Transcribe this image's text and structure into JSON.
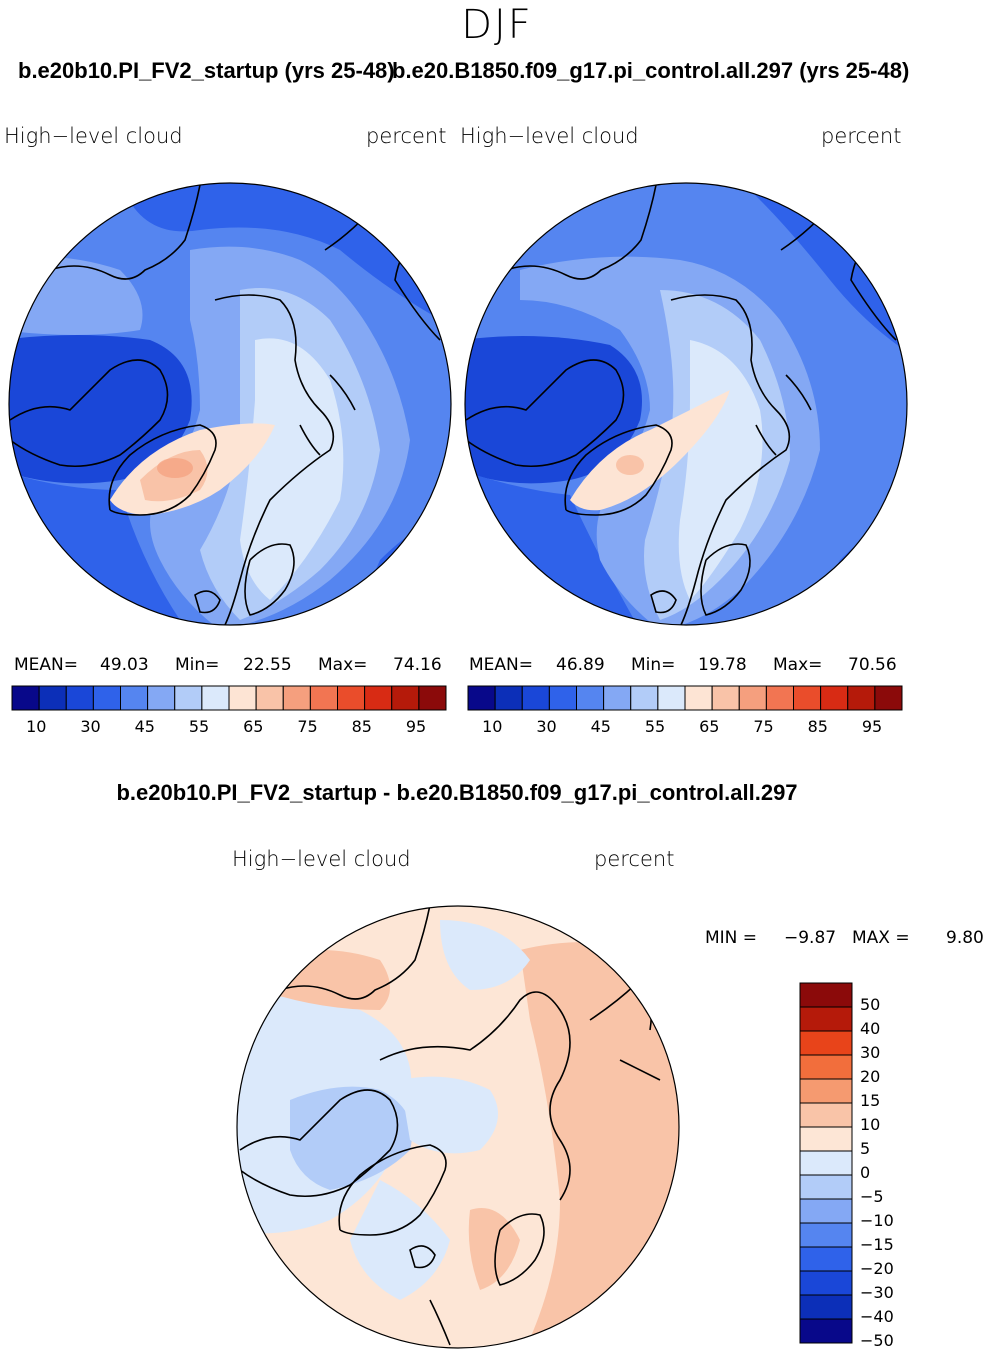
{
  "season": "DJF",
  "top_titles": {
    "left": "b.e20b10.PI_FV2_startup (yrs 25-48)",
    "right": "b.e20.B1850.f09_g17.pi_control.all.297 (yrs 25-48)"
  },
  "panels": [
    {
      "variable": "High−level  cloud",
      "units": "percent",
      "mean_label": "MEAN=",
      "mean": "49.03",
      "min_label": "Min=",
      "min": "22.55",
      "max_label": "Max=",
      "max": "74.16"
    },
    {
      "variable": "High−level  cloud",
      "units": "percent",
      "mean_label": "MEAN=",
      "mean": "46.89",
      "min_label": "Min=",
      "min": "19.78",
      "max_label": "Max=",
      "max": "70.56"
    }
  ],
  "abs_colorbar": {
    "colors": [
      "#08088a",
      "#0c2fb8",
      "#1a47d8",
      "#2f62ea",
      "#5585f0",
      "#84a8f4",
      "#b2ccf8",
      "#dbe9fb",
      "#fde4d4",
      "#f9c3a8",
      "#f59f7e",
      "#f27552",
      "#ea4d2b",
      "#d82b14",
      "#b51a0a",
      "#8b0a0a"
    ],
    "labels": [
      "10",
      "30",
      "45",
      "55",
      "65",
      "75",
      "85",
      "95"
    ]
  },
  "diff_title": "b.e20b10.PI_FV2_startup - b.e20.B1850.f09_g17.pi_control.all.297",
  "diff_panel": {
    "variable": "High−level  cloud",
    "units": "percent",
    "min_label": "MIN =",
    "min": "−9.87",
    "max_label": "MAX =",
    "max": "9.80"
  },
  "diff_colorbar": {
    "colors": [
      "#8b0a0a",
      "#b51a0a",
      "#e8441a",
      "#f26e3c",
      "#f59a70",
      "#f9c4a8",
      "#fde6d6",
      "#dbe9fb",
      "#b2ccf8",
      "#84a8f4",
      "#5585f0",
      "#2f62ea",
      "#1a47d8",
      "#0c2fb8",
      "#08088a"
    ],
    "labels": [
      "50",
      "40",
      "30",
      "20",
      "15",
      "10",
      "5",
      "0",
      "−5",
      "−10",
      "−15",
      "−20",
      "−30",
      "−40",
      "−50"
    ]
  },
  "chart_data": [
    {
      "type": "heatmap",
      "title": "b.e20b10.PI_FV2_startup (yrs 25-48)",
      "variable": "High-level cloud",
      "units": "percent",
      "projection": "north polar stereographic",
      "mean": 49.03,
      "min": 22.55,
      "max": 74.16,
      "contour_levels": [
        10,
        30,
        45,
        55,
        65,
        75,
        85,
        95
      ]
    },
    {
      "type": "heatmap",
      "title": "b.e20.B1850.f09_g17.pi_control.all.297 (yrs 25-48)",
      "variable": "High-level cloud",
      "units": "percent",
      "projection": "north polar stereographic",
      "mean": 46.89,
      "min": 19.78,
      "max": 70.56,
      "contour_levels": [
        10,
        30,
        45,
        55,
        65,
        75,
        85,
        95
      ]
    },
    {
      "type": "heatmap",
      "title": "b.e20b10.PI_FV2_startup - b.e20.B1850.f09_g17.pi_control.all.297",
      "variable": "High-level cloud",
      "units": "percent",
      "projection": "north polar stereographic",
      "min": -9.87,
      "max": 9.8,
      "contour_levels": [
        -50,
        -40,
        -30,
        -20,
        -15,
        -10,
        -5,
        0,
        5,
        10,
        15,
        20,
        30,
        40,
        50
      ]
    }
  ]
}
